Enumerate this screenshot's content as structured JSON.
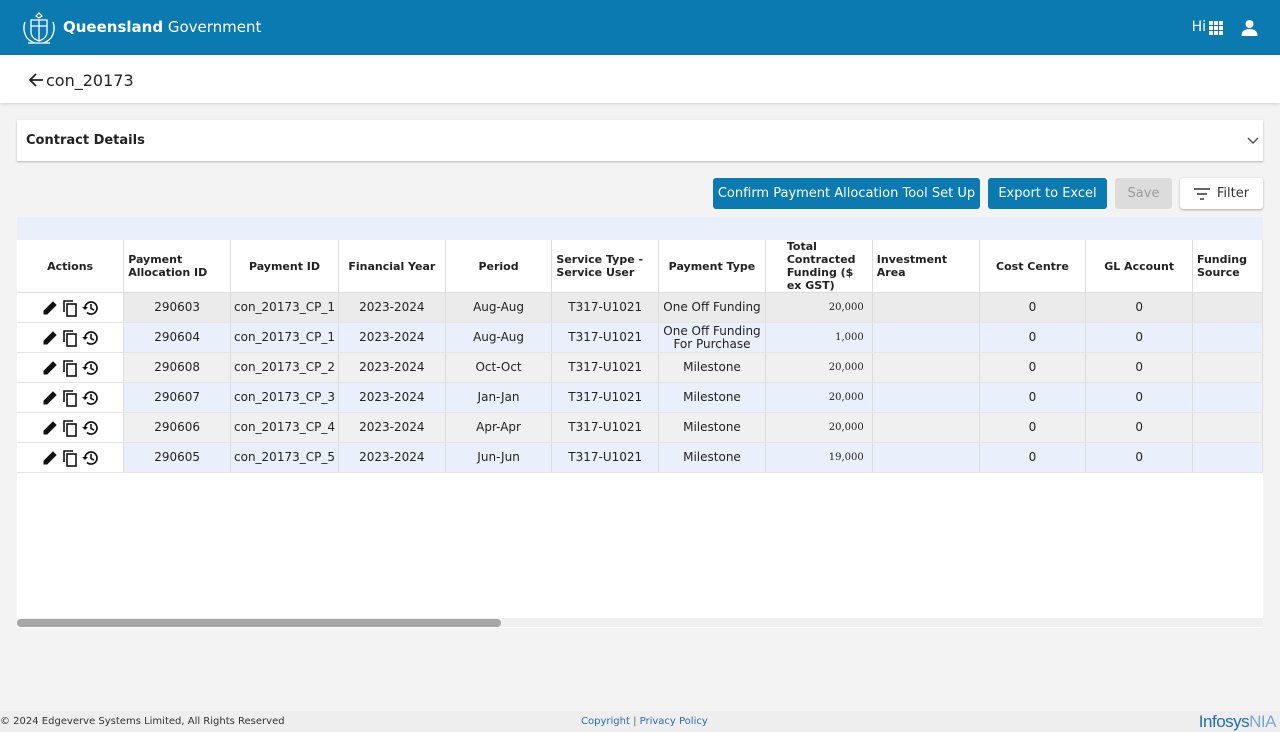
{
  "header": {
    "brand_bold": "Queensland",
    "brand_regular": "Government",
    "greeting": "Hi"
  },
  "page": {
    "title": "con_20173"
  },
  "accordion": {
    "title": "Contract Details"
  },
  "toolbar": {
    "confirm_label": "Confirm Payment Allocation Tool Set Up",
    "export_label": "Export to Excel",
    "save_label": "Save",
    "filter_label": "Filter"
  },
  "table": {
    "headers": {
      "actions": "Actions",
      "allocation_id": "Payment Allocation ID",
      "payment_id": "Payment ID",
      "financial_year": "Financial Year",
      "period": "Period",
      "service": "Service Type - Service User",
      "payment_type": "Payment Type",
      "funding": "Total Contracted Funding ($ ex GST)",
      "investment_area": "Investment Area",
      "cost_centre": "Cost Centre",
      "gl_account": "GL Account",
      "funding_source": "Funding Source"
    },
    "rows": [
      {
        "allocation_id": "290603",
        "payment_id": "con_20173_CP_1",
        "financial_year": "2023-2024",
        "period": "Aug-Aug",
        "service": "T317-U1021",
        "payment_type": "One Off Funding",
        "funding": "20,000",
        "investment_area": "",
        "cost_centre": "0",
        "gl_account": "0",
        "funding_source": ""
      },
      {
        "allocation_id": "290604",
        "payment_id": "con_20173_CP_1",
        "financial_year": "2023-2024",
        "period": "Aug-Aug",
        "service": "T317-U1021",
        "payment_type": "One Off Funding For Purchase",
        "funding": "1,000",
        "investment_area": "",
        "cost_centre": "0",
        "gl_account": "0",
        "funding_source": ""
      },
      {
        "allocation_id": "290608",
        "payment_id": "con_20173_CP_2",
        "financial_year": "2023-2024",
        "period": "Oct-Oct",
        "service": "T317-U1021",
        "payment_type": "Milestone",
        "funding": "20,000",
        "investment_area": "",
        "cost_centre": "0",
        "gl_account": "0",
        "funding_source": ""
      },
      {
        "allocation_id": "290607",
        "payment_id": "con_20173_CP_3",
        "financial_year": "2023-2024",
        "period": "Jan-Jan",
        "service": "T317-U1021",
        "payment_type": "Milestone",
        "funding": "20,000",
        "investment_area": "",
        "cost_centre": "0",
        "gl_account": "0",
        "funding_source": ""
      },
      {
        "allocation_id": "290606",
        "payment_id": "con_20173_CP_4",
        "financial_year": "2023-2024",
        "period": "Apr-Apr",
        "service": "T317-U1021",
        "payment_type": "Milestone",
        "funding": "20,000",
        "investment_area": "",
        "cost_centre": "0",
        "gl_account": "0",
        "funding_source": ""
      },
      {
        "allocation_id": "290605",
        "payment_id": "con_20173_CP_5",
        "financial_year": "2023-2024",
        "period": "Jun-Jun",
        "service": "T317-U1021",
        "payment_type": "Milestone",
        "funding": "19,000",
        "investment_area": "",
        "cost_centre": "0",
        "gl_account": "0",
        "funding_source": ""
      }
    ],
    "row_actions": [
      "edit-icon",
      "copy-icon",
      "history-icon"
    ]
  },
  "footer": {
    "copyright": "© 2024 Edgeverve Systems Limited, All Rights Reserved",
    "copyright_link": "Copyright",
    "separator": "|",
    "privacy_link": "Privacy Policy",
    "logo_main": "Infosys",
    "logo_suffix": "NIA"
  },
  "colors": {
    "brand_blue": "#0a7ab0",
    "row_alt": "#eaf0fb",
    "disabled": "#dcdcdc"
  }
}
